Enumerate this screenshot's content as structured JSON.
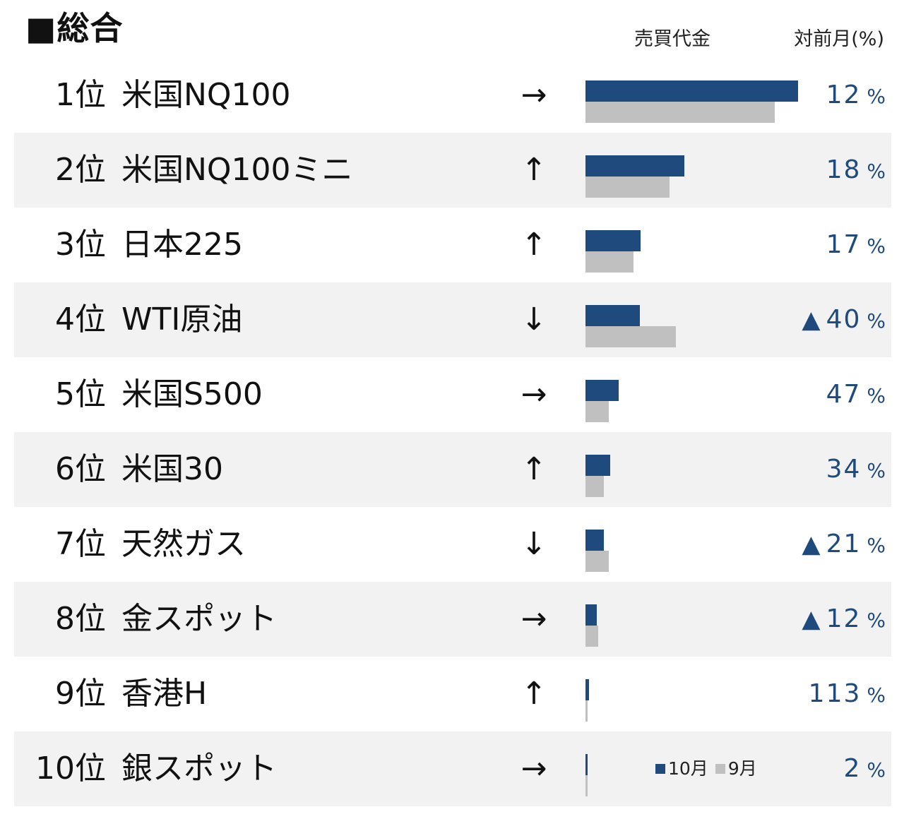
{
  "title": "■総合",
  "columns": {
    "volume": "売買代金",
    "change": "対前月(%)"
  },
  "legend": {
    "current": "10月",
    "previous": "9月"
  },
  "colors": {
    "current": "#1f4a7d",
    "previous": "#c0c0c0",
    "change_text": "#1f4a7d"
  },
  "decrease_marker": "▲",
  "percent_unit": "%",
  "chart_data": {
    "type": "bar",
    "orientation": "horizontal",
    "title": "■総合",
    "axis": {
      "min": 0,
      "max": 100,
      "shown": false
    },
    "series": [
      {
        "name": "10月",
        "color": "#1f4a7d"
      },
      {
        "name": "9月",
        "color": "#c0c0c0"
      }
    ],
    "rows": [
      {
        "rank": "1位",
        "name": "米国NQ100",
        "trend": "→",
        "current": 100,
        "previous": 89,
        "change": "12",
        "negative": false
      },
      {
        "rank": "2位",
        "name": "米国NQ100ミニ",
        "trend": "↑",
        "current": 46.5,
        "previous": 39.5,
        "change": "18",
        "negative": false
      },
      {
        "rank": "3位",
        "name": "日本225",
        "trend": "↑",
        "current": 26,
        "previous": 22.5,
        "change": "17",
        "negative": false
      },
      {
        "rank": "4位",
        "name": "WTI原油",
        "trend": "↓",
        "current": 25.5,
        "previous": 42.5,
        "change": "40",
        "negative": true
      },
      {
        "rank": "5位",
        "name": "米国S500",
        "trend": "→",
        "current": 15.7,
        "previous": 10.8,
        "change": "47",
        "negative": false
      },
      {
        "rank": "6位",
        "name": "米国30",
        "trend": "↑",
        "current": 11.5,
        "previous": 8.6,
        "change": "34",
        "negative": false
      },
      {
        "rank": "7位",
        "name": "天然ガス",
        "trend": "↓",
        "current": 8.5,
        "previous": 10.8,
        "change": "21",
        "negative": true
      },
      {
        "rank": "8位",
        "name": "金スポット",
        "trend": "→",
        "current": 5.2,
        "previous": 5.9,
        "change": "12",
        "negative": true
      },
      {
        "rank": "9位",
        "name": "香港H",
        "trend": "↑",
        "current": 1.6,
        "previous": 0.75,
        "change": "113",
        "negative": false
      },
      {
        "rank": "10位",
        "name": "銀スポット",
        "trend": "→",
        "current": 0.9,
        "previous": 0.9,
        "change": "2",
        "negative": false
      }
    ]
  }
}
